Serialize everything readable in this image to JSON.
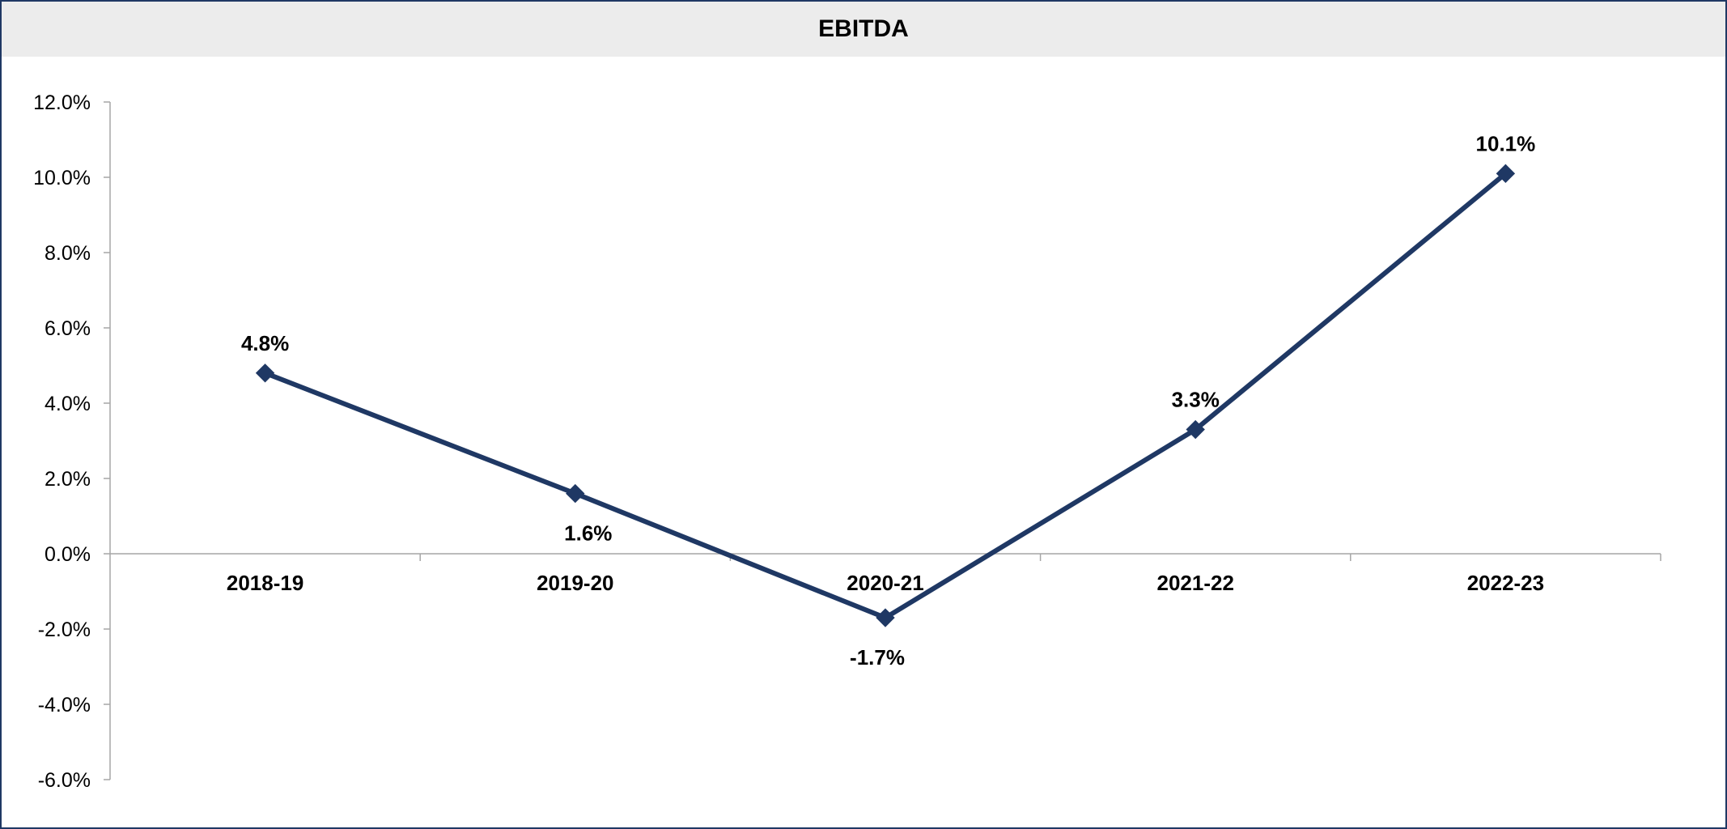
{
  "chart_data": {
    "type": "line",
    "title": "EBITDA",
    "categories": [
      "2018-19",
      "2019-20",
      "2020-21",
      "2021-22",
      "2022-23"
    ],
    "series": [
      {
        "values": [
          4.8,
          1.6,
          -1.7,
          3.3,
          10.1
        ]
      }
    ],
    "data_labels": [
      "4.8%",
      "1.6%",
      "-1.7%",
      "3.3%",
      "10.1%"
    ],
    "data_label_position": [
      "above",
      "below",
      "below",
      "above",
      "above"
    ],
    "y_ticks": [
      "12.0%",
      "10.0%",
      "8.0%",
      "6.0%",
      "4.0%",
      "2.0%",
      "0.0%",
      "-2.0%",
      "-4.0%",
      "-6.0%"
    ],
    "y_tick_values": [
      12,
      10,
      8,
      6,
      4,
      2,
      0,
      -2,
      -4,
      -6
    ],
    "ylim": [
      -6,
      12
    ],
    "marker": "diamond",
    "grid": false,
    "legend": "none",
    "colors": {
      "line": "#1f3864",
      "axis": "#a6a6a6",
      "title_bar": "#ececec",
      "border": "#1f3864"
    }
  }
}
